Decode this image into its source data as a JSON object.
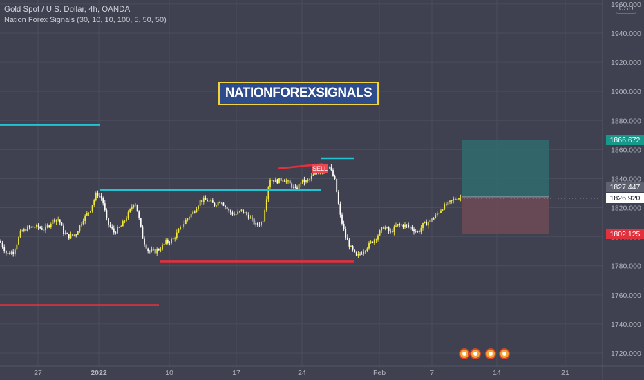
{
  "header": {
    "title": "Gold Spot / U.S. Dollar, 4h, OANDA",
    "indicator": "Nation Forex Signals  (30, 10, 10, 100, 5, 50, 50)"
  },
  "banner": "NATIONFOREXSIGNALS",
  "currency_label": "USD",
  "sell_label": "SELL",
  "price_tags": {
    "target": "1866.672",
    "entry": "1827.447",
    "last": "1826.920",
    "stop": "1802.125"
  },
  "chart_data": {
    "type": "candlestick",
    "ylim": [
      1715,
      1950
    ],
    "y_ticks": [
      1720,
      1740,
      1760,
      1780,
      1800,
      1820,
      1840,
      1860,
      1880,
      1900,
      1920,
      1940,
      1960
    ],
    "y_tick_labels": [
      "1720.000",
      "1740.000",
      "1760.000",
      "1780.000",
      "1800.000",
      "1820.000",
      "1840.000",
      "1860.000",
      "1880.000",
      "1900.000",
      "1920.000",
      "1940.000",
      "1960.000"
    ],
    "x_tick_labels": [
      "27",
      "2022",
      "10",
      "17",
      "24",
      "Feb",
      "7",
      "14",
      "21"
    ],
    "close_path": [
      [
        0,
        1797
      ],
      [
        10,
        1788
      ],
      [
        20,
        1790
      ],
      [
        30,
        1803
      ],
      [
        40,
        1806
      ],
      [
        52,
        1807
      ],
      [
        65,
        1805
      ],
      [
        78,
        1812
      ],
      [
        85,
        1812
      ],
      [
        92,
        1803
      ],
      [
        100,
        1800
      ],
      [
        110,
        1802
      ],
      [
        120,
        1812
      ],
      [
        130,
        1818
      ],
      [
        140,
        1830
      ],
      [
        148,
        1826
      ],
      [
        155,
        1810
      ],
      [
        165,
        1803
      ],
      [
        175,
        1807
      ],
      [
        185,
        1815
      ],
      [
        195,
        1825
      ],
      [
        200,
        1815
      ],
      [
        207,
        1798
      ],
      [
        215,
        1790
      ],
      [
        225,
        1790
      ],
      [
        232,
        1792
      ],
      [
        240,
        1796
      ],
      [
        250,
        1798
      ],
      [
        260,
        1805
      ],
      [
        270,
        1812
      ],
      [
        280,
        1817
      ],
      [
        290,
        1825
      ],
      [
        300,
        1825
      ],
      [
        310,
        1822
      ],
      [
        320,
        1825
      ],
      [
        330,
        1818
      ],
      [
        340,
        1815
      ],
      [
        350,
        1818
      ],
      [
        360,
        1814
      ],
      [
        370,
        1808
      ],
      [
        380,
        1810
      ],
      [
        390,
        1840
      ],
      [
        400,
        1838
      ],
      [
        410,
        1840
      ],
      [
        420,
        1836
      ],
      [
        428,
        1832
      ],
      [
        436,
        1838
      ],
      [
        445,
        1838
      ],
      [
        455,
        1843
      ],
      [
        465,
        1845
      ],
      [
        475,
        1850
      ],
      [
        485,
        1838
      ],
      [
        492,
        1815
      ],
      [
        500,
        1800
      ],
      [
        508,
        1792
      ],
      [
        516,
        1786
      ],
      [
        525,
        1790
      ],
      [
        535,
        1795
      ],
      [
        545,
        1800
      ],
      [
        555,
        1807
      ],
      [
        565,
        1803
      ],
      [
        575,
        1808
      ],
      [
        585,
        1808
      ],
      [
        595,
        1806
      ],
      [
        605,
        1803
      ],
      [
        612,
        1808
      ],
      [
        620,
        1810
      ],
      [
        630,
        1814
      ],
      [
        640,
        1820
      ],
      [
        650,
        1823
      ],
      [
        660,
        1827
      ],
      [
        668,
        1826.92
      ]
    ],
    "levels": [
      {
        "name": "resistance",
        "y": 1877,
        "x_range": [
          0,
          145
        ],
        "color": "#22c3d3"
      },
      {
        "name": "support",
        "y": 1753,
        "x_range": [
          0,
          230
        ],
        "color": "#e0313c"
      },
      {
        "name": "resistance",
        "y": 1832,
        "x_range": [
          145,
          465
        ],
        "color": "#22c3d3"
      },
      {
        "name": "support",
        "y": 1783,
        "x_range": [
          232,
          513
        ],
        "color": "#e0313c"
      },
      {
        "name": "resistance",
        "y": 1854,
        "x_range": [
          465,
          513
        ],
        "color": "#22c3d3"
      },
      {
        "name": "trend",
        "y_start": 1847,
        "y_end": 1850,
        "x_range": [
          403,
          467
        ],
        "color": "#e0313c"
      }
    ],
    "position": {
      "entry": 1827.447,
      "target": 1866.672,
      "stop": 1802.125,
      "x_range": [
        668,
        795
      ]
    },
    "colors": {
      "background": "#3f4150",
      "up_candle": "#f2e83a",
      "down_candle": "#ffffff",
      "grid": "#4a4d5b",
      "profit_zone": "#2f6c6f",
      "loss_zone": "#6a4a54"
    }
  }
}
